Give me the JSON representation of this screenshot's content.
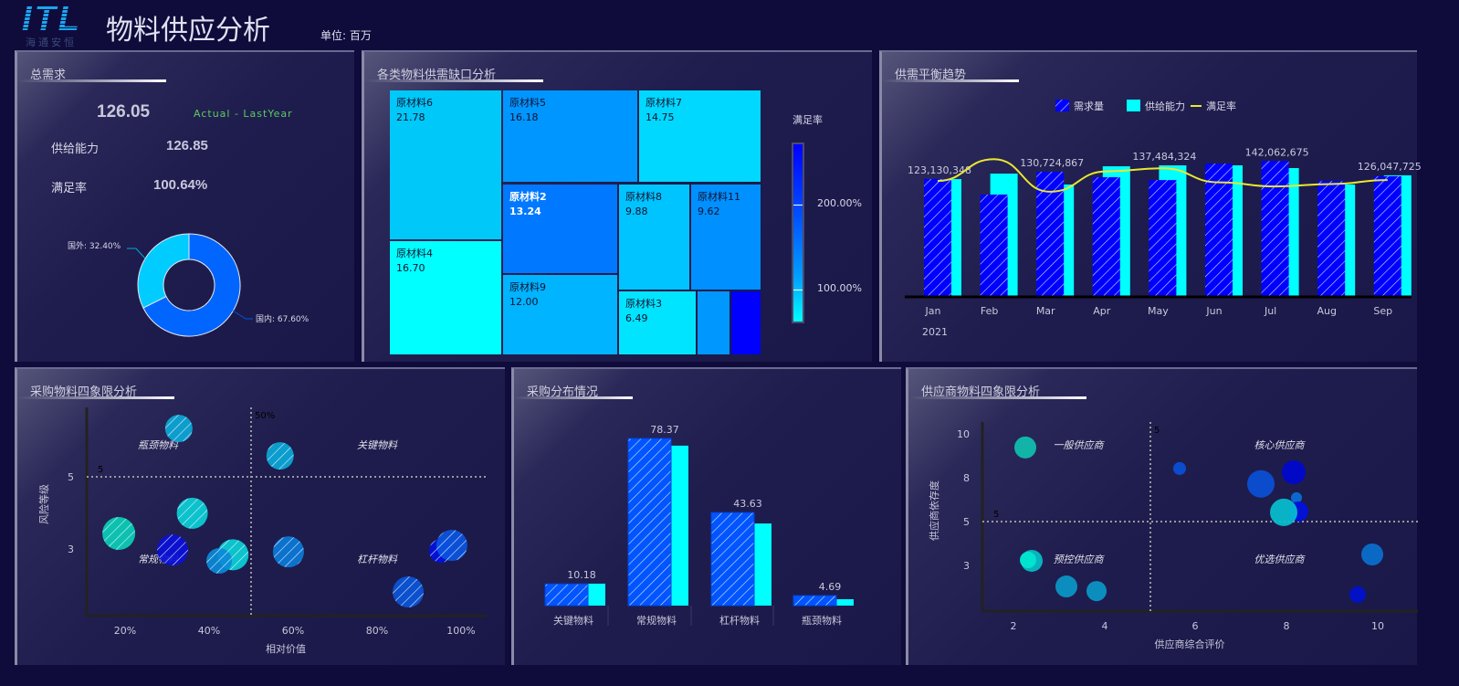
{
  "header": {
    "logo": "ITL",
    "logo_sub": "海通安恒",
    "title": "物料供应分析",
    "unit": "单位: 百万"
  },
  "total_demand": {
    "title": "总需求",
    "demand_value": "126.05",
    "comparison_label": "Actual - LastYear",
    "supply_label": "供给能力",
    "supply_value": "126.85",
    "rate_label": "满足率",
    "rate_value": "100.64%",
    "donut": {
      "slices": [
        {
          "label": "国内: 67.60%",
          "value": 67.6,
          "color": "#0066ff"
        },
        {
          "label": "国外: 32.40%",
          "value": 32.4,
          "color": "#00ccff"
        }
      ]
    }
  },
  "treemap": {
    "title": "各类物料供需缺口分析",
    "legend_title": "满足率",
    "legend_ticks": [
      "200.00%",
      "100.00%"
    ],
    "items": [
      {
        "name": "原材料6",
        "value": "21.78",
        "color": "#00c8f8"
      },
      {
        "name": "原材料4",
        "value": "16.70",
        "color": "#00ffff"
      },
      {
        "name": "原材料5",
        "value": "16.18",
        "color": "#0096ff"
      },
      {
        "name": "原材料7",
        "value": "14.75",
        "color": "#00d8ff"
      },
      {
        "name": "原材料2",
        "value": "13.24",
        "color": "#0078ff"
      },
      {
        "name": "原材料9",
        "value": "12.00",
        "color": "#00b4ff"
      },
      {
        "name": "原材料8",
        "value": "9.88",
        "color": "#00c4ff"
      },
      {
        "name": "原材料11",
        "value": "9.62",
        "color": "#0090ff"
      },
      {
        "name": "原材料3",
        "value": "6.49",
        "color": "#00e4ff"
      },
      {
        "name": "",
        "value": "",
        "color": "#0098ff"
      },
      {
        "name": "",
        "value": "",
        "color": "#0000ff"
      }
    ]
  },
  "trend": {
    "title": "供需平衡趋势",
    "chart_data": {
      "type": "bar",
      "categories": [
        "Jan",
        "Feb",
        "Mar",
        "Apr",
        "May",
        "Jun",
        "Jul",
        "Aug",
        "Sep"
      ],
      "year_label": "2021",
      "series": [
        {
          "name": "需求量",
          "values": [
            123.13,
            106.7,
            130.72,
            125,
            122,
            139.4,
            142.06,
            121,
            126.05
          ],
          "color": "#0000ff"
        },
        {
          "name": "供给能力",
          "values": [
            123,
            128.8,
            117.3,
            136.5,
            137.48,
            137.5,
            134.6,
            117.3,
            127
          ],
          "color": "#00ffff"
        },
        {
          "name": "满足率",
          "type": "line",
          "values": [
            100,
            120.7,
            89.7,
            109,
            112,
            98.6,
            94.7,
            97,
            100.8
          ],
          "color": "#e8e830"
        }
      ],
      "data_labels": [
        "123,130,348",
        null,
        "130,724,867",
        null,
        "137,484,324",
        null,
        "142,062,675",
        null,
        "126,047,725"
      ],
      "legend": "top"
    }
  },
  "purchase_quadrant": {
    "title": "采购物料四象限分析",
    "chart_data": {
      "type": "scatter",
      "xlabel": "相对价值",
      "ylabel": "风险等级",
      "x_ticks": [
        "20%",
        "40%",
        "60%",
        "80%",
        "100%"
      ],
      "y_ticks": [
        "5",
        "3"
      ],
      "x_divider_label": "50%",
      "y_divider_label": "5",
      "quadrant_labels": [
        "瓶颈物料",
        "关键物料",
        "常规物料",
        "杠杆物料"
      ],
      "points": [
        {
          "x": 32.8,
          "y": 6.34,
          "size": 15,
          "color": "#0aa8d8"
        },
        {
          "x": 56.9,
          "y": 5.58,
          "size": 15,
          "color": "#0aa8d8"
        },
        {
          "x": 36,
          "y": 3.99,
          "size": 17,
          "color": "#0bd0d8"
        },
        {
          "x": 18.5,
          "y": 3.43,
          "size": 18,
          "color": "#0bcfb8"
        },
        {
          "x": 31.3,
          "y": 2.97,
          "size": 17,
          "color": "#0a10d8"
        },
        {
          "x": 45.7,
          "y": 2.84,
          "size": 17,
          "color": "#0bd0d8"
        },
        {
          "x": 42.4,
          "y": 2.67,
          "size": 14,
          "color": "#0a8ad8"
        },
        {
          "x": 58.9,
          "y": 2.92,
          "size": 17,
          "color": "#0a7ad8"
        },
        {
          "x": 95.2,
          "y": 2.95,
          "size": 13,
          "color": "#0010e0"
        },
        {
          "x": 97.8,
          "y": 3.1,
          "size": 17,
          "color": "#0a55e0"
        },
        {
          "x": 87.4,
          "y": 1.81,
          "size": 17,
          "color": "#0a55d8"
        }
      ]
    }
  },
  "purchase_distribution": {
    "title": "采购分布情况",
    "chart_data": {
      "type": "bar",
      "categories": [
        "关键物料",
        "常规物料",
        "杠杆物料",
        "瓶颈物料"
      ],
      "series": [
        {
          "values": [
            10.18,
            78.37,
            43.63,
            4.69
          ],
          "color": "#0055ff"
        },
        {
          "values": [
            10.3,
            75,
            38.5,
            3.0
          ],
          "color": "#00ffff"
        }
      ],
      "data_labels": [
        "10.18",
        "78.37",
        "43.63",
        "4.69"
      ]
    }
  },
  "supplier_quadrant": {
    "title": "供应商物料四象限分析",
    "chart_data": {
      "type": "scatter",
      "xlabel": "供应商综合评价",
      "ylabel": "供应商依存度",
      "x_ticks": [
        "2",
        "4",
        "6",
        "8",
        "10"
      ],
      "y_ticks": [
        "10",
        "8",
        "5",
        "3"
      ],
      "x_divider_label": "5",
      "y_divider_label": "5",
      "quadrant_labels": [
        "一般供应商",
        "核心供应商",
        "预控供应商",
        "优选供应商"
      ],
      "points": [
        {
          "x": 2.26,
          "y": 9.38,
          "size": 12,
          "color": "#10c0b0"
        },
        {
          "x": 5.64,
          "y": 8.42,
          "size": 7,
          "color": "#0a50d8"
        },
        {
          "x": 7.42,
          "y": 7.58,
          "size": 15,
          "color": "#0a50d8"
        },
        {
          "x": 8.14,
          "y": 8.25,
          "size": 13,
          "color": "#0008d0"
        },
        {
          "x": 8.2,
          "y": 6.63,
          "size": 6,
          "color": "#0a70d8"
        },
        {
          "x": 8.24,
          "y": 5.69,
          "size": 11,
          "color": "#0010e0"
        },
        {
          "x": 7.92,
          "y": 5.63,
          "size": 15,
          "color": "#08c0d0"
        },
        {
          "x": 2.4,
          "y": 3.21,
          "size": 12,
          "color": "#08c0c8"
        },
        {
          "x": 2.32,
          "y": 3.25,
          "size": 9,
          "color": "#00e8d0"
        },
        {
          "x": 3.16,
          "y": 2.04,
          "size": 12,
          "color": "#0a98c8"
        },
        {
          "x": 3.82,
          "y": 1.83,
          "size": 11,
          "color": "#0a98c8"
        },
        {
          "x": 9.86,
          "y": 3.5,
          "size": 12,
          "color": "#0a70d0"
        },
        {
          "x": 9.54,
          "y": 1.67,
          "size": 9,
          "color": "#0010d0"
        }
      ]
    }
  }
}
